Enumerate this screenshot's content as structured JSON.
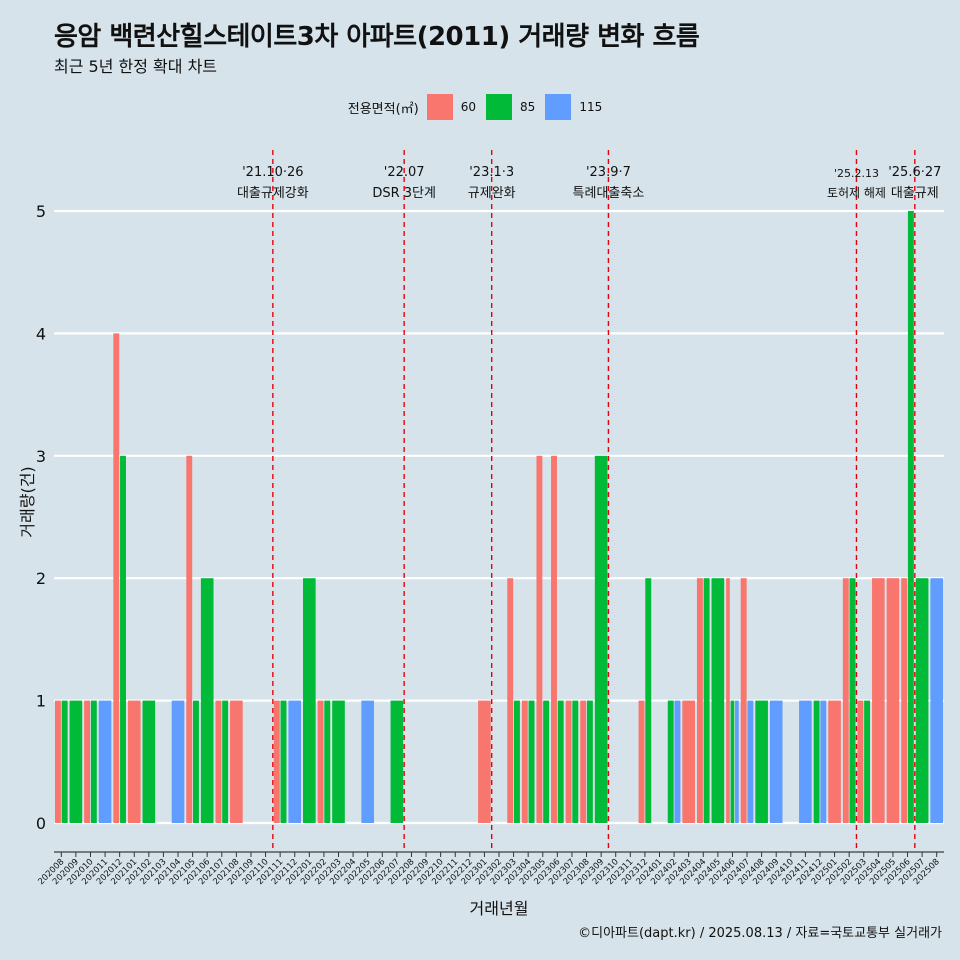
{
  "title": "응암 백련산힐스테이트3차 아파트(2011) 거래량 변화 흐름",
  "subtitle": "최근 5년 한정 확대 차트",
  "caption": "©디아파트(dapt.kr) / 2025.08.13 / 자료=국토교통부 실거래가",
  "legend": {
    "title": "전용면적(㎡)",
    "items": [
      {
        "label": "60",
        "color": "#f8766d"
      },
      {
        "label": "85",
        "color": "#00ba38"
      },
      {
        "label": "115",
        "color": "#619cff"
      }
    ]
  },
  "chart_data": {
    "type": "bar",
    "xlabel": "거래년월",
    "ylabel": "거래량(건)",
    "ylim": [
      0,
      5
    ],
    "yticks": [
      0,
      1,
      2,
      3,
      4,
      5
    ],
    "grid": true,
    "legend_position": "top",
    "categories": [
      "202008",
      "202009",
      "202010",
      "202011",
      "202012",
      "202101",
      "202102",
      "202103",
      "202104",
      "202105",
      "202106",
      "202107",
      "202108",
      "202109",
      "202110",
      "202111",
      "202112",
      "202201",
      "202202",
      "202203",
      "202204",
      "202205",
      "202206",
      "202207",
      "202208",
      "202209",
      "202210",
      "202211",
      "202212",
      "202301",
      "202302",
      "202303",
      "202304",
      "202305",
      "202306",
      "202307",
      "202308",
      "202309",
      "202310",
      "202311",
      "202312",
      "202401",
      "202402",
      "202403",
      "202404",
      "202405",
      "202406",
      "202407",
      "202408",
      "202409",
      "202410",
      "202411",
      "202412",
      "202501",
      "202502",
      "202503",
      "202504",
      "202505",
      "202506",
      "202507",
      "202508"
    ],
    "series": [
      {
        "name": "60",
        "color": "#f8766d",
        "values": [
          1,
          0,
          1,
          0,
          4,
          1,
          0,
          0,
          0,
          3,
          0,
          1,
          1,
          0,
          0,
          1,
          0,
          0,
          1,
          0,
          0,
          0,
          0,
          0,
          0,
          0,
          0,
          0,
          0,
          1,
          0,
          2,
          1,
          3,
          3,
          1,
          1,
          0,
          0,
          0,
          1,
          0,
          0,
          1,
          2,
          0,
          2,
          2,
          0,
          0,
          0,
          0,
          0,
          1,
          2,
          1,
          2,
          2,
          2,
          0,
          0
        ]
      },
      {
        "name": "85",
        "color": "#00ba38",
        "values": [
          1,
          1,
          1,
          0,
          3,
          0,
          1,
          0,
          0,
          1,
          2,
          1,
          0,
          0,
          0,
          1,
          0,
          2,
          1,
          1,
          0,
          0,
          0,
          1,
          0,
          0,
          0,
          0,
          0,
          0,
          0,
          1,
          1,
          1,
          1,
          1,
          1,
          3,
          0,
          0,
          2,
          0,
          1,
          0,
          2,
          2,
          1,
          0,
          1,
          0,
          0,
          0,
          1,
          0,
          2,
          1,
          0,
          0,
          5,
          2,
          0
        ]
      },
      {
        "name": "115",
        "color": "#619cff",
        "values": [
          0,
          0,
          0,
          1,
          0,
          0,
          0,
          0,
          1,
          0,
          0,
          0,
          0,
          0,
          0,
          0,
          1,
          0,
          0,
          0,
          0,
          1,
          0,
          0,
          0,
          0,
          0,
          0,
          0,
          0,
          0,
          0,
          0,
          0,
          0,
          0,
          0,
          0,
          0,
          0,
          0,
          0,
          1,
          0,
          0,
          0,
          1,
          1,
          0,
          1,
          0,
          1,
          1,
          0,
          0,
          0,
          0,
          0,
          0,
          0,
          2
        ]
      }
    ],
    "events": [
      {
        "date": "'21.10·26",
        "label": "대출규제강화",
        "after": "202110"
      },
      {
        "date": "'22.07",
        "label": "DSR 3단계",
        "after": "202207"
      },
      {
        "date": "'23.1·3",
        "label": "규제완화",
        "after": "202301"
      },
      {
        "date": "'23.9·7",
        "label": "특례대출축소",
        "after": "202309"
      },
      {
        "date": "'25.2.13",
        "label": "토허제 해제",
        "after": "202502"
      },
      {
        "date": "'25.6·27",
        "label": "대출규제",
        "after": "202506"
      }
    ]
  }
}
